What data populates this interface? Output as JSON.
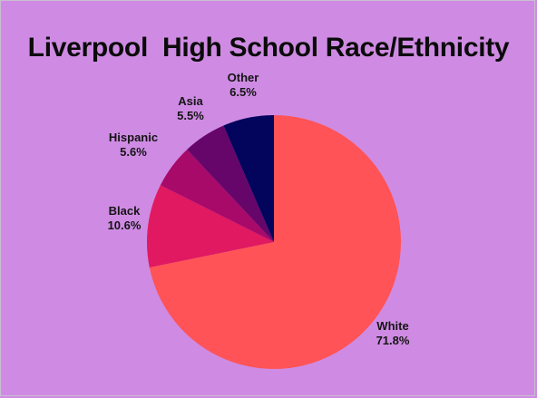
{
  "chart_data": {
    "type": "pie",
    "title": "Liverpool  High School Race/Ethnicity",
    "slices": [
      {
        "label": "White",
        "value": 71.8,
        "value_label": "71.8%",
        "color": "#ff5357"
      },
      {
        "label": "Black",
        "value": 10.6,
        "value_label": "10.6%",
        "color": "#e01961"
      },
      {
        "label": "Hispanic",
        "value": 5.6,
        "value_label": "5.6%",
        "color": "#a80a6a"
      },
      {
        "label": "Asia",
        "value": 5.5,
        "value_label": "5.5%",
        "color": "#66066a"
      },
      {
        "label": "Other",
        "value": 6.5,
        "value_label": "6.5%",
        "color": "#03055c"
      }
    ]
  }
}
